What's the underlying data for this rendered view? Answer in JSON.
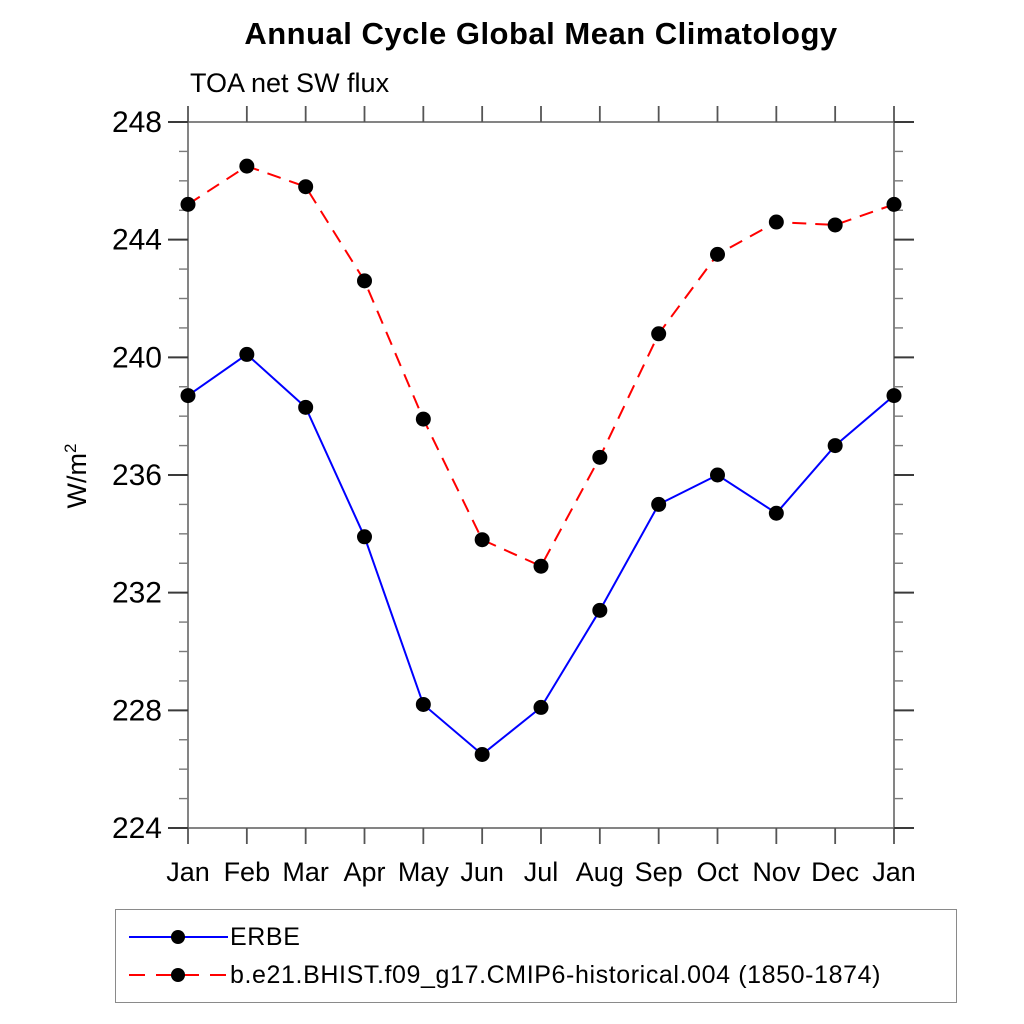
{
  "page": {
    "background": "#ffffff"
  },
  "chart_data": {
    "type": "line",
    "title": "Annual Cycle Global Mean Climatology",
    "subtitle": "TOA net SW flux",
    "ylabel_base": "W/m",
    "ylabel_exponent": "2",
    "x_tick_labels": [
      "Jan",
      "Feb",
      "Mar",
      "Apr",
      "May",
      "Jun",
      "Jul",
      "Aug",
      "Sep",
      "Oct",
      "Nov",
      "Dec",
      "Jan"
    ],
    "ylim": [
      224,
      248
    ],
    "y_major_tick_step": 4,
    "y_minor_tick_step": 1,
    "y_major_tick_labels": [
      "224",
      "228",
      "232",
      "236",
      "240",
      "244",
      "248"
    ],
    "grid": false,
    "legend_position": "bottom-left-box",
    "axis_color": "#666666",
    "tick_color": "#555555",
    "marker_color": "#000000",
    "series": [
      {
        "name": "ERBE",
        "color": "#0000ff",
        "line_style": "solid",
        "marker": "filled-circle",
        "values": [
          238.7,
          240.1,
          238.3,
          233.9,
          228.2,
          226.5,
          228.1,
          231.4,
          235.0,
          236.0,
          234.7,
          237.0,
          238.7
        ]
      },
      {
        "name": "b.e21.BHIST.f09_g17.CMIP6-historical.004 (1850-1874)",
        "color": "#ff0000",
        "line_style": "dashed",
        "marker": "filled-circle",
        "values": [
          245.2,
          246.5,
          245.8,
          242.6,
          237.9,
          233.8,
          232.9,
          236.6,
          240.8,
          243.5,
          244.6,
          244.5,
          245.2
        ]
      }
    ]
  }
}
